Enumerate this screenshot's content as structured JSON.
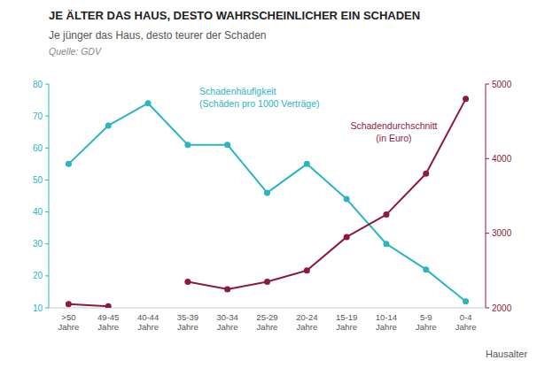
{
  "chart_data": {
    "type": "line",
    "title": "JE ÄLTER DAS HAUS, DESTO WAHRSCHEINLICHER EIN SCHADEN",
    "subtitle": "Je jünger das Haus, desto teurer der Schaden",
    "source": "Quelle: GDV",
    "xlabel": "Hausalter",
    "categories": [
      ">50\nJahre",
      "49-45\nJahre",
      "40-44\nJahre",
      "35-39\nJahre",
      "30-34\nJahre",
      "25-29\nJahre",
      "20-24\nJahre",
      "15-19\nJahre",
      "10-14\nJahre",
      "5-9\nJahre",
      "0-4\nJahre"
    ],
    "series": [
      {
        "name": "Schadenhäufigkeit\n(Schäden pro 1000 Verträge)",
        "color": "#2ab5c3",
        "marker": "circle",
        "values": [
          55,
          67,
          74,
          61,
          61,
          46,
          55,
          44,
          30,
          22,
          12
        ]
      },
      {
        "name": "Schadendurchschnitt\n(in Euro)",
        "color": "#8c1a3c",
        "marker": "circle",
        "axis": "y2",
        "values": [
          2050,
          2020,
          null,
          2350,
          2250,
          2350,
          2500,
          2950,
          3250,
          3800,
          4800
        ]
      }
    ],
    "ylim": [
      10,
      80
    ],
    "yticks": [
      10,
      20,
      30,
      40,
      50,
      60,
      70,
      80
    ],
    "y2lim": [
      2000,
      5000
    ],
    "y2ticks": [
      2000,
      3000,
      4000,
      5000
    ],
    "grid": false
  }
}
